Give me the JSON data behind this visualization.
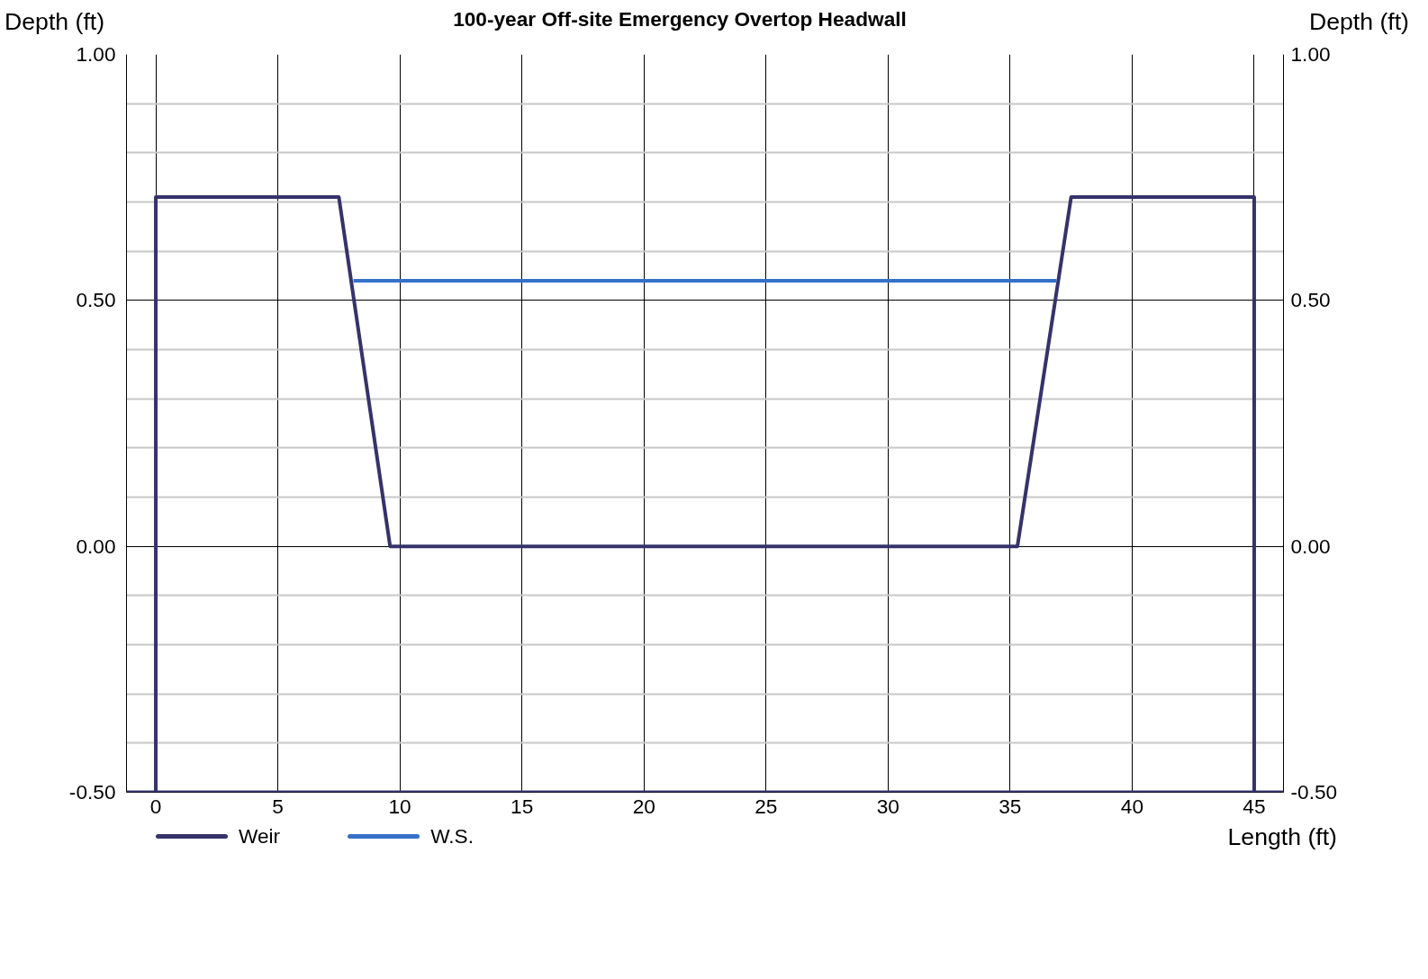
{
  "chart_data": {
    "type": "line",
    "title": "100-year Off-site Emergency Overtop Headwall",
    "xlabel": "Length (ft)",
    "ylabel": "Depth (ft)",
    "y2label": "Depth (ft)",
    "series": [
      {
        "name": "Weir",
        "color": "#35336a",
        "x": [
          0,
          0,
          7.5,
          9.6,
          35.3,
          37.5,
          45,
          45
        ],
        "values": [
          -0.5,
          0.71,
          0.71,
          0,
          0,
          0.71,
          0.71,
          -0.5
        ]
      },
      {
        "name": "W.S.",
        "color": "#3571c8",
        "x": [
          8.1,
          36.9
        ],
        "values": [
          0.54,
          0.54
        ]
      }
    ],
    "ref_lines": [
      {
        "axis": "y",
        "value": -0.5,
        "color": "#35336a",
        "line_style": "solid"
      }
    ],
    "xlim": [
      -1.2,
      46.2
    ],
    "xticks": [
      0,
      5,
      10,
      15,
      20,
      25,
      30,
      35,
      40,
      45
    ],
    "ylim": [
      -0.5,
      1.0
    ],
    "yticks": [
      {
        "value": -0.5,
        "label": "-0.50"
      },
      {
        "value": -0.4,
        "label": null
      },
      {
        "value": -0.3,
        "label": null
      },
      {
        "value": -0.2,
        "label": null
      },
      {
        "value": -0.1,
        "label": null
      },
      {
        "value": 0,
        "label": "0.00"
      },
      {
        "value": 0.1,
        "label": null
      },
      {
        "value": 0.2,
        "label": null
      },
      {
        "value": 0.3,
        "label": null
      },
      {
        "value": 0.4,
        "label": null
      },
      {
        "value": 0.5,
        "label": "0.50"
      },
      {
        "value": 0.6,
        "label": null
      },
      {
        "value": 0.7,
        "label": null
      },
      {
        "value": 0.8,
        "label": null
      },
      {
        "value": 0.9,
        "label": null
      },
      {
        "value": 1.0,
        "label": "1.00"
      }
    ],
    "y2lim": [
      -0.5,
      1.0
    ],
    "y2ticks": [
      {
        "value": -0.5,
        "label": "-0.50"
      },
      {
        "value": 0,
        "label": "0.00"
      },
      {
        "value": 0.5,
        "label": "0.50"
      },
      {
        "value": 1.0,
        "label": "1.00"
      }
    ],
    "grid": true,
    "legend": "bottom left",
    "marker": "none",
    "line_style": "solid"
  }
}
